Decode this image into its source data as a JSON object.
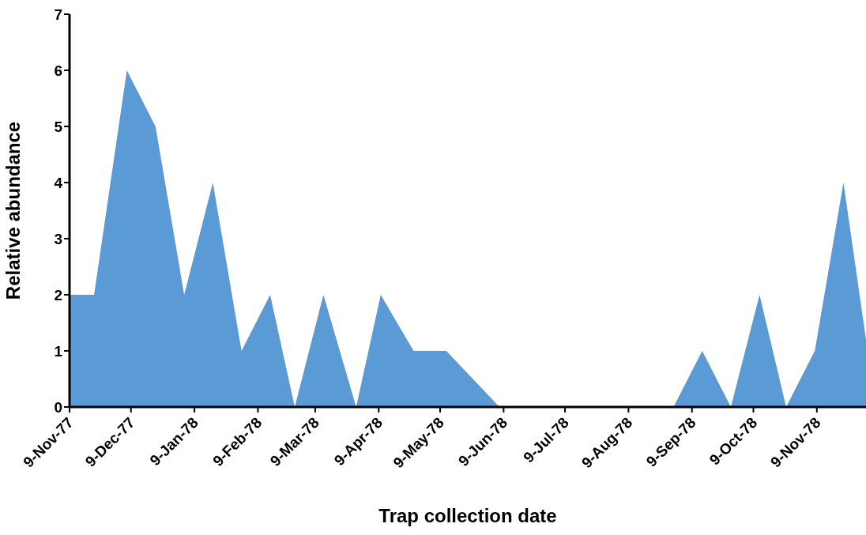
{
  "chart_data": {
    "type": "area",
    "xlabel": "Trap collection date",
    "ylabel": "Relative abundance",
    "x": [
      "1977-11-09",
      "1977-11-21",
      "1977-12-07",
      "1977-12-21",
      "1978-01-04",
      "1978-01-18",
      "1978-02-01",
      "1978-02-15",
      "1978-02-27",
      "1978-03-13",
      "1978-03-29",
      "1978-04-10",
      "1978-04-26",
      "1978-05-12",
      "1978-06-07",
      "1978-08-31",
      "1978-09-14",
      "1978-09-28",
      "1978-10-12",
      "1978-10-25",
      "1978-11-08",
      "1978-11-22",
      "1978-12-03"
    ],
    "series": [
      {
        "color": "#5b9bd5",
        "values": [
          2,
          2,
          6,
          5,
          2,
          4,
          1,
          2,
          0,
          2,
          0,
          2,
          1,
          1,
          0,
          0,
          1,
          0,
          2,
          0,
          1,
          4,
          1.2
        ]
      }
    ],
    "xlim": [
      "1977-11-09",
      "1978-12-03"
    ],
    "xticks": [
      {
        "value": "1977-11-09",
        "label": "9-Nov-77"
      },
      {
        "value": "1977-12-09",
        "label": "9-Dec-77"
      },
      {
        "value": "1978-01-09",
        "label": "9-Jan-78"
      },
      {
        "value": "1978-02-09",
        "label": "9-Feb-78"
      },
      {
        "value": "1978-03-09",
        "label": "9-Mar-78"
      },
      {
        "value": "1978-04-09",
        "label": "9-Apr-78"
      },
      {
        "value": "1978-05-09",
        "label": "9-May-78"
      },
      {
        "value": "1978-06-09",
        "label": "9-Jun-78"
      },
      {
        "value": "1978-07-09",
        "label": "9-Jul-78"
      },
      {
        "value": "1978-08-09",
        "label": "9-Aug-78"
      },
      {
        "value": "1978-09-09",
        "label": "9-Sep-78"
      },
      {
        "value": "1978-10-09",
        "label": "9-Oct-78"
      },
      {
        "value": "1978-11-09",
        "label": "9-Nov-78"
      }
    ],
    "ylim": [
      0,
      7
    ],
    "yticks": [
      0,
      1,
      2,
      3,
      4,
      5,
      6,
      7
    ],
    "grid": false,
    "legend": false
  }
}
